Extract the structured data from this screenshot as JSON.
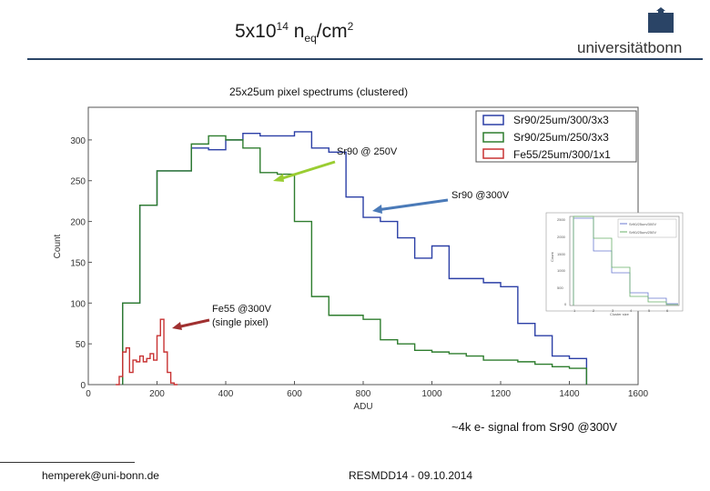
{
  "header": {
    "title_base": "5x10",
    "title_exp": "14",
    "title_mid": " n",
    "title_sub": "eq",
    "title_unit": "/cm",
    "title_unit_exp": "2",
    "logo_text": "universitätbonn"
  },
  "colors": {
    "blue": "#2b3fa6",
    "green": "#2e7d2e",
    "red": "#c83232",
    "accent": "#2a4466"
  },
  "chart_data": {
    "type": "line",
    "title": "25x25um pixel spectrums (clustered)",
    "xlabel": "ADU",
    "ylabel": "Count",
    "xlim": [
      0,
      1600
    ],
    "ylim": [
      0,
      340
    ],
    "xticks": [
      0,
      200,
      400,
      600,
      800,
      1000,
      1200,
      1400,
      1600
    ],
    "yticks": [
      0,
      50,
      100,
      150,
      200,
      250,
      300
    ],
    "legend_position": "top-right",
    "series": [
      {
        "name": "Sr90/25um/300/3x3",
        "color": "#2b3fa6",
        "edges": [
          100,
          150,
          200,
          250,
          300,
          350,
          400,
          450,
          500,
          550,
          600,
          650,
          700,
          750,
          800,
          850,
          900,
          950,
          1000,
          1050,
          1100,
          1150,
          1200,
          1250,
          1300,
          1350,
          1400,
          1450
        ],
        "values": [
          100,
          220,
          262,
          262,
          290,
          288,
          300,
          308,
          305,
          305,
          310,
          290,
          285,
          230,
          205,
          200,
          180,
          155,
          170,
          130,
          130,
          125,
          120,
          75,
          60,
          35,
          32
        ]
      },
      {
        "name": "Sr90/25um/250/3x3",
        "color": "#2e7d2e",
        "edges": [
          100,
          150,
          200,
          250,
          300,
          350,
          400,
          450,
          500,
          550,
          600,
          650,
          700,
          750,
          800,
          850,
          900,
          950,
          1000,
          1050,
          1100,
          1150,
          1200,
          1250,
          1300,
          1350,
          1400,
          1450
        ],
        "values": [
          100,
          220,
          262,
          262,
          295,
          305,
          300,
          290,
          260,
          258,
          200,
          108,
          85,
          85,
          80,
          55,
          50,
          42,
          40,
          38,
          35,
          30,
          30,
          28,
          25,
          22,
          20
        ]
      },
      {
        "name": "Fe55/25um/300/1x1",
        "color": "#c83232",
        "x": [
          80,
          90,
          100,
          110,
          120,
          130,
          140,
          150,
          160,
          170,
          180,
          190,
          200,
          210,
          220,
          230,
          240,
          250
        ],
        "values": [
          0,
          10,
          40,
          45,
          15,
          30,
          28,
          35,
          28,
          32,
          38,
          30,
          60,
          80,
          40,
          15,
          2,
          0
        ]
      }
    ],
    "annotations": [
      {
        "text": "Sr90 @ 250V",
        "arrow_color": "#9acd32"
      },
      {
        "text": "Sr90 @300V",
        "arrow_color": "#4a7ab8"
      },
      {
        "text": "Fe55 @300V",
        "text2": "(single pixel)",
        "arrow_color": "#a03030"
      }
    ],
    "inset": {
      "ylabel": "Count",
      "xlabel": "Cluster size",
      "yticks": [
        "0",
        "500",
        "1000",
        "1500",
        "2000",
        "2500"
      ],
      "xticks": [
        "1",
        "2",
        "3",
        "4",
        "5",
        "6"
      ],
      "legend": [
        "Sr90/25um/300V",
        "Sr90/25um/250V"
      ]
    }
  },
  "note": "~4k e- signal from Sr90 @300V",
  "footer": {
    "email": "hemperek@uni-bonn.de",
    "conference": "RESMDD14 - 09.10.2014"
  }
}
